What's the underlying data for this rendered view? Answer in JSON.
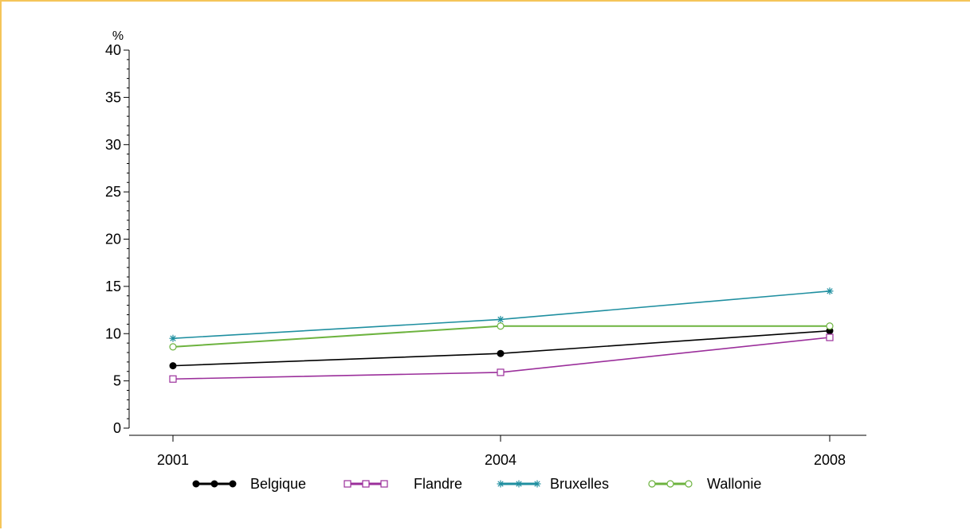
{
  "chart_data": {
    "type": "line",
    "title": "",
    "xlabel": "",
    "ylabel": "%",
    "ylim": [
      0,
      40
    ],
    "yticks": [
      0,
      5,
      10,
      15,
      20,
      25,
      30,
      35,
      40
    ],
    "x": [
      2001,
      2004,
      2008
    ],
    "xtick_labels": [
      "2001",
      "2004",
      "2008"
    ],
    "grid": false,
    "legend_position": "bottom",
    "series": [
      {
        "name": "Belgique",
        "values": [
          6.6,
          7.9,
          10.3
        ],
        "color": "#000000",
        "marker": "filled-circle"
      },
      {
        "name": "Flandre",
        "values": [
          5.2,
          5.9,
          9.6
        ],
        "color": "#9b2f9b",
        "marker": "open-square"
      },
      {
        "name": "Bruxelles",
        "values": [
          9.5,
          11.5,
          14.5
        ],
        "color": "#1f8fa0",
        "marker": "asterisk"
      },
      {
        "name": "Wallonie",
        "values": [
          8.6,
          10.8,
          10.8
        ],
        "color": "#6db33f",
        "marker": "open-circle"
      }
    ]
  }
}
